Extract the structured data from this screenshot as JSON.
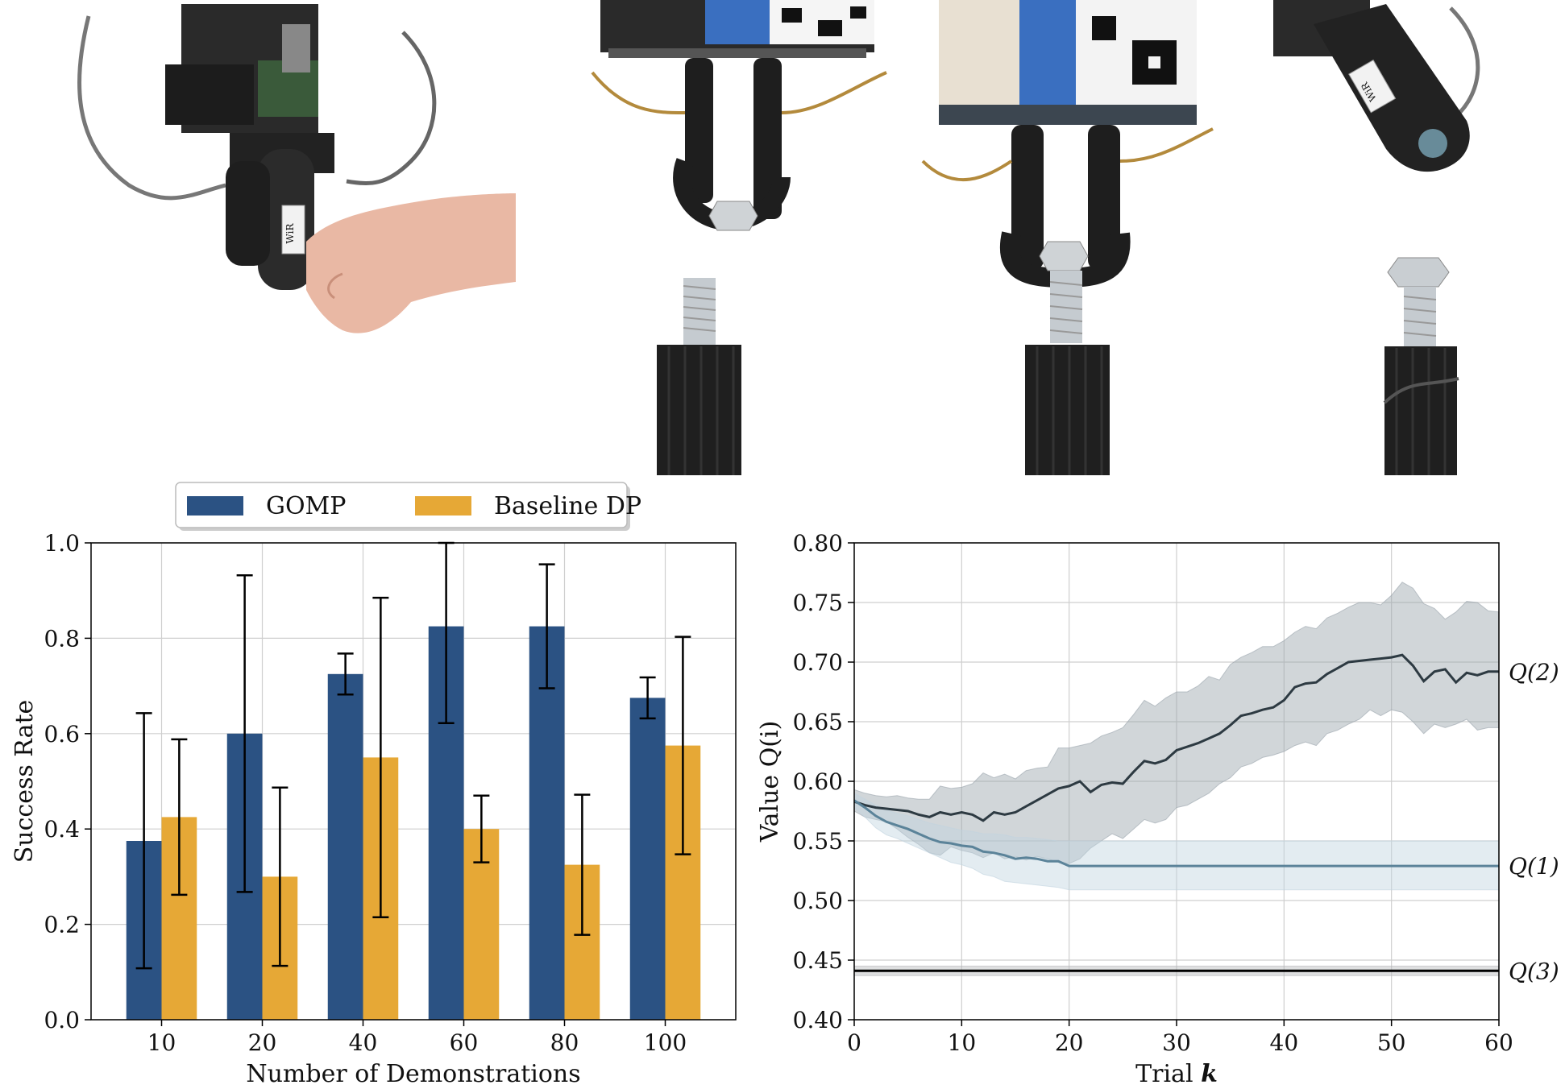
{
  "photos": [
    {
      "name": "human-teleop-photo",
      "tag_text": "WiR"
    },
    {
      "name": "gripper-nut-above-bolt-photo",
      "tag_text": ""
    },
    {
      "name": "gripper-nut-on-bolt-photo",
      "tag_text": ""
    },
    {
      "name": "gripper-rotated-photo",
      "tag_text": "WiR"
    }
  ],
  "chart_data": [
    {
      "type": "bar",
      "xlabel": "Number of Demonstrations",
      "ylabel": "Success Rate",
      "ylim": [
        0,
        1
      ],
      "yticks": [
        "0.0",
        "0.2",
        "0.4",
        "0.6",
        "0.8",
        "1.0"
      ],
      "categories": [
        "10",
        "20",
        "40",
        "60",
        "80",
        "100"
      ],
      "legend_position": "top-center",
      "grid": true,
      "series": [
        {
          "name": "GOMP",
          "color": "#2b5283",
          "values": [
            0.375,
            0.6,
            0.725,
            0.825,
            0.825,
            0.675
          ],
          "err_low": [
            0.108,
            0.268,
            0.682,
            0.622,
            0.695,
            0.632
          ],
          "err_high": [
            0.643,
            0.932,
            0.768,
            1.0,
            0.955,
            0.718
          ]
        },
        {
          "name": "Baseline DP",
          "color": "#e6a836",
          "values": [
            0.425,
            0.3,
            0.55,
            0.4,
            0.325,
            0.575
          ],
          "err_low": [
            0.262,
            0.113,
            0.215,
            0.33,
            0.178,
            0.347
          ],
          "err_high": [
            0.588,
            0.487,
            0.885,
            0.47,
            0.472,
            0.803
          ]
        }
      ]
    },
    {
      "type": "line",
      "xlabel_prefix": "Trial",
      "xlabel_var": "k",
      "ylabel": "Value Q(i)",
      "xlim": [
        0,
        60
      ],
      "ylim": [
        0.4,
        0.8
      ],
      "xticks": [
        "0",
        "10",
        "20",
        "30",
        "40",
        "50",
        "60"
      ],
      "yticks": [
        "0.40",
        "0.45",
        "0.50",
        "0.55",
        "0.60",
        "0.65",
        "0.70",
        "0.75",
        "0.80"
      ],
      "grid": true,
      "series": [
        {
          "label": "Q(2)",
          "color": "#2d3a42",
          "band_color": "#9aa4ab",
          "x": [
            0,
            1,
            2,
            3,
            4,
            5,
            6,
            7,
            8,
            9,
            10,
            11,
            12,
            13,
            14,
            15,
            16,
            17,
            18,
            19,
            20,
            21,
            22,
            23,
            24,
            25,
            26,
            27,
            28,
            29,
            30,
            31,
            32,
            33,
            34,
            35,
            36,
            37,
            38,
            39,
            40,
            41,
            42,
            43,
            44,
            45,
            46,
            47,
            48,
            49,
            50,
            51,
            52,
            53,
            54,
            55,
            56,
            57,
            58,
            59,
            60
          ],
          "y": [
            0.583,
            0.58,
            0.578,
            0.577,
            0.576,
            0.575,
            0.572,
            0.57,
            0.574,
            0.572,
            0.574,
            0.572,
            0.567,
            0.574,
            0.572,
            0.574,
            0.579,
            0.584,
            0.589,
            0.594,
            0.596,
            0.6,
            0.591,
            0.597,
            0.599,
            0.598,
            0.608,
            0.617,
            0.615,
            0.618,
            0.626,
            0.629,
            0.632,
            0.636,
            0.64,
            0.647,
            0.655,
            0.657,
            0.66,
            0.662,
            0.668,
            0.679,
            0.682,
            0.683,
            0.69,
            0.695,
            0.7,
            0.701,
            0.702,
            0.703,
            0.704,
            0.706,
            0.697,
            0.684,
            0.692,
            0.694,
            0.683,
            0.691,
            0.689,
            0.692,
            0.692
          ],
          "lower": [
            0.575,
            0.57,
            0.568,
            0.566,
            0.56,
            0.553,
            0.547,
            0.54,
            0.538,
            0.545,
            0.542,
            0.54,
            0.536,
            0.54,
            0.535,
            0.537,
            0.534,
            0.537,
            0.535,
            0.532,
            0.531,
            0.535,
            0.544,
            0.55,
            0.556,
            0.552,
            0.56,
            0.568,
            0.565,
            0.568,
            0.578,
            0.58,
            0.585,
            0.59,
            0.598,
            0.603,
            0.612,
            0.615,
            0.62,
            0.622,
            0.625,
            0.63,
            0.633,
            0.63,
            0.64,
            0.643,
            0.648,
            0.652,
            0.66,
            0.655,
            0.66,
            0.658,
            0.65,
            0.64,
            0.648,
            0.645,
            0.648,
            0.652,
            0.643,
            0.645,
            0.645
          ],
          "upper": [
            0.593,
            0.59,
            0.588,
            0.587,
            0.588,
            0.586,
            0.585,
            0.585,
            0.596,
            0.594,
            0.595,
            0.598,
            0.607,
            0.603,
            0.606,
            0.602,
            0.609,
            0.611,
            0.612,
            0.628,
            0.628,
            0.63,
            0.632,
            0.638,
            0.641,
            0.645,
            0.656,
            0.668,
            0.663,
            0.67,
            0.675,
            0.675,
            0.68,
            0.688,
            0.685,
            0.698,
            0.704,
            0.708,
            0.713,
            0.713,
            0.718,
            0.725,
            0.73,
            0.728,
            0.737,
            0.741,
            0.746,
            0.75,
            0.75,
            0.748,
            0.756,
            0.767,
            0.762,
            0.749,
            0.745,
            0.736,
            0.742,
            0.751,
            0.75,
            0.743,
            0.742
          ]
        },
        {
          "label": "Q(1)",
          "color": "#5b8399",
          "band_color": "#c2d4e0",
          "x": [
            0,
            1,
            2,
            3,
            4,
            5,
            6,
            7,
            8,
            9,
            10,
            11,
            12,
            13,
            14,
            15,
            16,
            17,
            18,
            19,
            20,
            25,
            30,
            35,
            40,
            45,
            50,
            55,
            60
          ],
          "y": [
            0.584,
            0.578,
            0.571,
            0.566,
            0.563,
            0.56,
            0.556,
            0.552,
            0.549,
            0.548,
            0.546,
            0.545,
            0.541,
            0.54,
            0.538,
            0.535,
            0.536,
            0.535,
            0.533,
            0.533,
            0.529,
            0.529,
            0.529,
            0.529,
            0.529,
            0.529,
            0.529,
            0.529,
            0.529
          ],
          "lower": [
            0.578,
            0.57,
            0.561,
            0.555,
            0.552,
            0.548,
            0.544,
            0.54,
            0.536,
            0.532,
            0.53,
            0.527,
            0.522,
            0.52,
            0.516,
            0.515,
            0.514,
            0.513,
            0.512,
            0.511,
            0.509,
            0.509,
            0.509,
            0.509,
            0.509,
            0.509,
            0.509,
            0.509,
            0.509
          ],
          "upper": [
            0.59,
            0.585,
            0.58,
            0.576,
            0.573,
            0.571,
            0.568,
            0.565,
            0.563,
            0.561,
            0.559,
            0.558,
            0.556,
            0.556,
            0.555,
            0.553,
            0.553,
            0.552,
            0.551,
            0.55,
            0.55,
            0.55,
            0.55,
            0.55,
            0.55,
            0.55,
            0.55,
            0.55,
            0.55
          ]
        },
        {
          "label": "Q(3)",
          "color": "#000000",
          "band_color": "#b5b8ba",
          "x": [
            0,
            60
          ],
          "y": [
            0.441,
            0.441
          ],
          "lower": [
            0.437,
            0.437
          ],
          "upper": [
            0.445,
            0.445
          ]
        }
      ]
    }
  ]
}
